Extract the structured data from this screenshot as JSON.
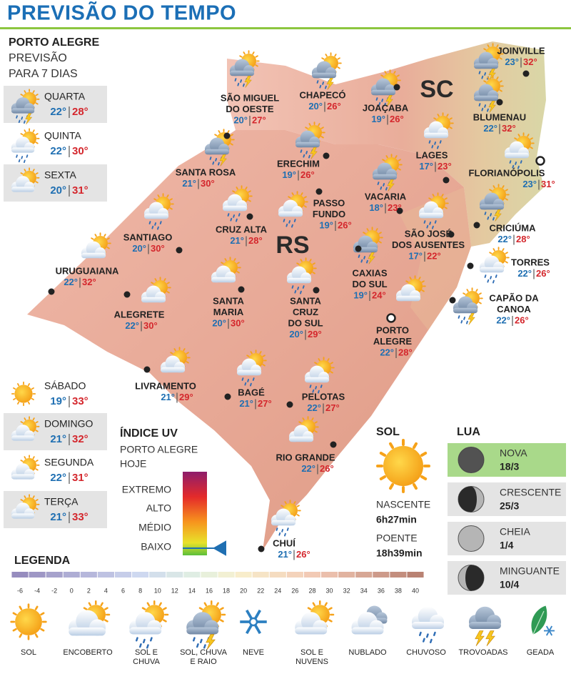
{
  "header": {
    "title": "PREVISÃO DO TEMPO"
  },
  "forecast": {
    "title": "PORTO ALEGRE",
    "subtitle": [
      "PREVISÃO",
      "PARA 7 DIAS"
    ],
    "days": [
      {
        "day": "QUARTA",
        "min": "22°",
        "max": "28°"
      },
      {
        "day": "QUINTA",
        "min": "22°",
        "max": "30°"
      },
      {
        "day": "SEXTA",
        "min": "20°",
        "max": "31°"
      },
      {
        "day": "SÁBADO",
        "min": "19°",
        "max": "33°"
      },
      {
        "day": "DOMINGO",
        "min": "21°",
        "max": "32°"
      },
      {
        "day": "SEGUNDA",
        "min": "22°",
        "max": "31°"
      },
      {
        "day": "TERÇA",
        "min": "21°",
        "max": "33°"
      }
    ]
  },
  "map": {
    "labels": [
      "SC",
      "RS"
    ],
    "cities": [
      {
        "lines": [
          "SÃO MIGUEL",
          "DO OESTE"
        ],
        "min": "20°",
        "max": "27°"
      },
      {
        "lines": [
          "CHAPECÓ"
        ],
        "min": "20°",
        "max": "26°"
      },
      {
        "lines": [
          "JOAÇABA"
        ],
        "min": "19°",
        "max": "26°"
      },
      {
        "lines": [
          "JOINVILLE"
        ],
        "min": "23°",
        "max": "32°"
      },
      {
        "lines": [
          "BLUMENAU"
        ],
        "min": "22°",
        "max": "32°"
      },
      {
        "lines": [
          "LAGES"
        ],
        "min": "17°",
        "max": "23°"
      },
      {
        "lines": [
          "FLORIANÓPOLIS"
        ],
        "min": "23°",
        "max": "31°"
      },
      {
        "lines": [
          "SANTA ROSA"
        ],
        "min": "21°",
        "max": "30°"
      },
      {
        "lines": [
          "ERECHIM"
        ],
        "min": "19°",
        "max": "26°"
      },
      {
        "lines": [
          "VACARIA"
        ],
        "min": "18°",
        "max": "23°"
      },
      {
        "lines": [
          "PASSO",
          "FUNDO"
        ],
        "min": "19°",
        "max": "26°"
      },
      {
        "lines": [
          "CRICIÚMA"
        ],
        "min": "22°",
        "max": "28°"
      },
      {
        "lines": [
          "SÃO JOSÉ",
          "DOS AUSENTES"
        ],
        "min": "17°",
        "max": "22°"
      },
      {
        "lines": [
          "CRUZ ALTA"
        ],
        "min": "21°",
        "max": "28°"
      },
      {
        "lines": [
          "SANTIAGO"
        ],
        "min": "20°",
        "max": "30°"
      },
      {
        "lines": [
          "URUGUAIANA"
        ],
        "min": "22°",
        "max": "32°"
      },
      {
        "lines": [
          "CAXIAS",
          "DO SUL"
        ],
        "min": "19°",
        "max": "24°"
      },
      {
        "lines": [
          "TORRES"
        ],
        "min": "22°",
        "max": "26°"
      },
      {
        "lines": [
          "ALEGRETE"
        ],
        "min": "22°",
        "max": "30°"
      },
      {
        "lines": [
          "SANTA",
          "MARIA"
        ],
        "min": "20°",
        "max": "30°"
      },
      {
        "lines": [
          "SANTA",
          "CRUZ",
          "DO SUL"
        ],
        "min": "20°",
        "max": "29°"
      },
      {
        "lines": [
          "CAPÃO DA",
          "CANOA"
        ],
        "min": "22°",
        "max": "26°"
      },
      {
        "lines": [
          "PORTO",
          "ALEGRE"
        ],
        "min": "22°",
        "max": "28°"
      },
      {
        "lines": [
          "LIVRAMENTO"
        ],
        "min": "21°",
        "max": "29°"
      },
      {
        "lines": [
          "BAGÉ"
        ],
        "min": "21°",
        "max": "27°"
      },
      {
        "lines": [
          "PELOTAS"
        ],
        "min": "22°",
        "max": "27°"
      },
      {
        "lines": [
          "RIO GRANDE"
        ],
        "min": "22°",
        "max": "26°"
      },
      {
        "lines": [
          "CHUÍ"
        ],
        "min": "21°",
        "max": "26°"
      }
    ]
  },
  "uv": {
    "title": "ÍNDICE UV",
    "subtitle": [
      "PORTO ALEGRE",
      "HOJE"
    ],
    "levels": [
      "EXTREMO",
      "ALTO",
      "MÉDIO",
      "BAIXO"
    ]
  },
  "sun": {
    "title": "SOL",
    "sunrise_label": "NASCENTE",
    "sunrise": "6h27min",
    "sunset_label": "POENTE",
    "sunset": "18h39min"
  },
  "moon": {
    "title": "LUA",
    "phases": [
      {
        "name": "NOVA",
        "date": "18/3"
      },
      {
        "name": "CRESCENTE",
        "date": "25/3"
      },
      {
        "name": "CHEIA",
        "date": "1/4"
      },
      {
        "name": "MINGUANTE",
        "date": "10/4"
      }
    ]
  },
  "legend": {
    "title": "LEGENDA",
    "scale": [
      -6,
      -4,
      -2,
      0,
      2,
      4,
      6,
      8,
      10,
      12,
      14,
      16,
      18,
      20,
      22,
      24,
      26,
      28,
      30,
      32,
      34,
      36,
      38,
      40
    ],
    "icons": [
      [
        "SOL"
      ],
      [
        "ENCOBERTO"
      ],
      [
        "SOL E",
        "CHUVA"
      ],
      [
        "SOL, CHUVA",
        "E RAIO"
      ],
      [
        "NEVE"
      ],
      [
        "SOL E",
        "NUVENS"
      ],
      [
        "NUBLADO"
      ],
      [
        "CHUVOSO"
      ],
      [
        "TROVOADAS"
      ],
      [
        "GEADA"
      ]
    ]
  }
}
